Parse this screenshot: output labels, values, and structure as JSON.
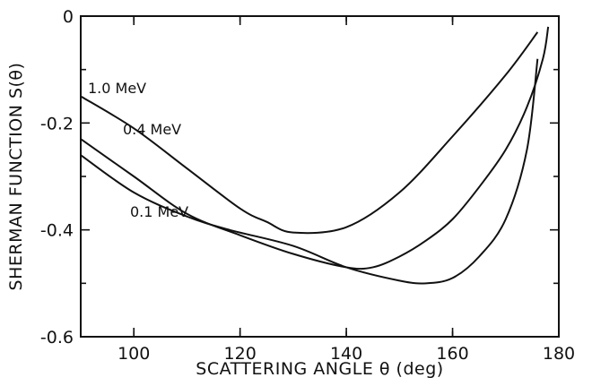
{
  "chart_data": {
    "type": "line",
    "title": "",
    "xlabel": "SCATTERING ANGLE θ (deg)",
    "ylabel": "SHERMAN FUNCTION S(θ)",
    "xlim": [
      90,
      180
    ],
    "ylim": [
      -0.6,
      0
    ],
    "grid": false,
    "x_ticks": [
      100,
      120,
      140,
      160,
      180
    ],
    "x_tick_labels": [
      "100",
      "120",
      "140",
      "160",
      "180"
    ],
    "y_ticks": [
      0,
      -0.2,
      -0.4,
      -0.6
    ],
    "y_tick_labels": [
      "0",
      "-0.2",
      "-0.4",
      "-0.6"
    ],
    "series": [
      {
        "name": "1.0 MeV",
        "x": [
          90,
          100,
          110,
          120,
          125,
          130,
          140,
          150,
          160,
          170,
          176
        ],
        "y": [
          -0.15,
          -0.21,
          -0.285,
          -0.36,
          -0.385,
          -0.405,
          -0.395,
          -0.33,
          -0.225,
          -0.11,
          -0.03
        ]
      },
      {
        "name": "0.4 MeV",
        "x": [
          90,
          100,
          110,
          120,
          130,
          140,
          145,
          150,
          155,
          160,
          165,
          170,
          174,
          177,
          178
        ],
        "y": [
          -0.23,
          -0.3,
          -0.37,
          -0.41,
          -0.445,
          -0.47,
          -0.47,
          -0.45,
          -0.42,
          -0.38,
          -0.32,
          -0.25,
          -0.17,
          -0.08,
          -0.02
        ]
      },
      {
        "name": "0.1 MeV",
        "x": [
          90,
          100,
          110,
          118,
          130,
          140,
          150,
          155,
          160,
          165,
          170,
          174,
          176
        ],
        "y": [
          -0.26,
          -0.33,
          -0.375,
          -0.4,
          -0.43,
          -0.47,
          -0.495,
          -0.5,
          -0.49,
          -0.45,
          -0.38,
          -0.25,
          -0.08
        ]
      }
    ]
  }
}
